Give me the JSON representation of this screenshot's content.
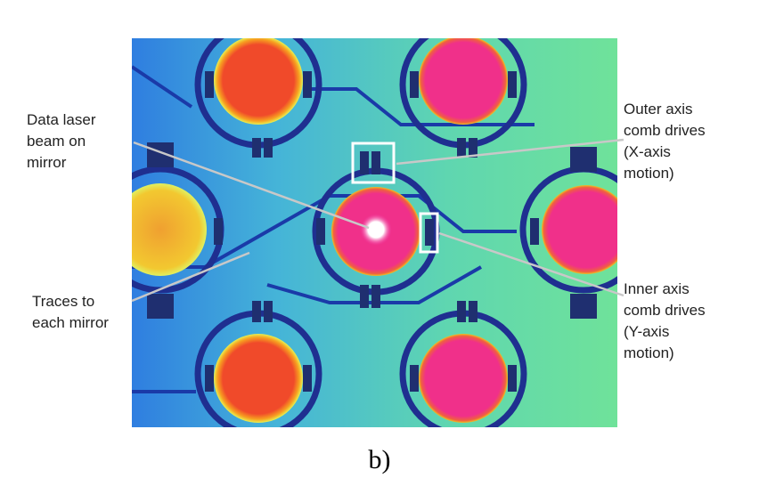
{
  "labels": [
    {
      "lines": [
        "Data laser",
        "beam on",
        "mirror"
      ]
    },
    {
      "lines": [
        "Traces to",
        "each mirror"
      ]
    },
    {
      "lines": [
        "Outer axis",
        "comb drives",
        "(X-axis",
        "motion)"
      ]
    },
    {
      "lines": [
        "Inner axis",
        "comb drives",
        "(Y-axis",
        "motion)"
      ]
    }
  ],
  "caption": "b)"
}
